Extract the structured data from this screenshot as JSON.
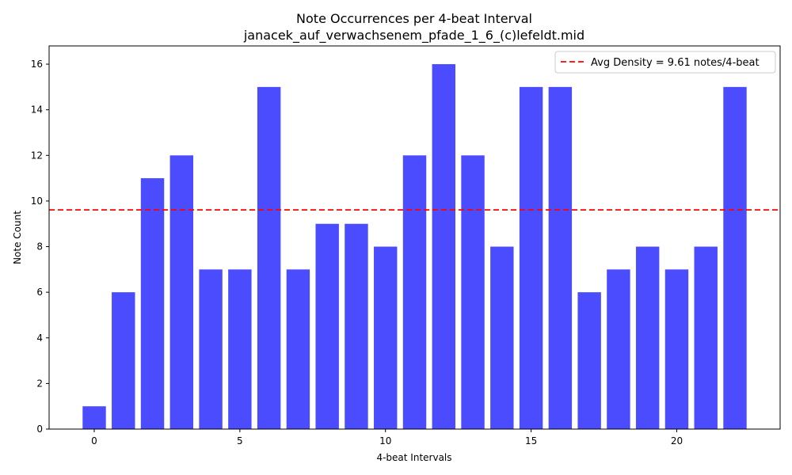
{
  "chart_data": {
    "type": "bar",
    "title": "Note Occurrences per 4-beat Interval",
    "subtitle": "janacek_auf_verwachsenem_pfade_1_6_(c)lefeldt.mid",
    "xlabel": "4-beat Intervals",
    "ylabel": "Note Count",
    "x": [
      0,
      1,
      2,
      3,
      4,
      5,
      6,
      7,
      8,
      9,
      10,
      11,
      12,
      13,
      14,
      15,
      16,
      17,
      18,
      19,
      20,
      21,
      22
    ],
    "values": [
      1,
      6,
      11,
      12,
      7,
      7,
      15,
      7,
      9,
      9,
      8,
      12,
      16,
      12,
      8,
      15,
      15,
      6,
      7,
      8,
      7,
      8,
      15
    ],
    "xlim": [
      -1.55,
      23.55
    ],
    "ylim": [
      0,
      16.8
    ],
    "xticks": [
      0,
      5,
      10,
      15,
      20
    ],
    "yticks": [
      0,
      2,
      4,
      6,
      8,
      10,
      12,
      14,
      16
    ],
    "bar_color": "#4c4cff",
    "avg_line": {
      "value": 9.61,
      "color": "#ff0000",
      "label": "Avg Density = 9.61 notes/4-beat"
    },
    "legend_position": "top-right",
    "grid": false
  }
}
